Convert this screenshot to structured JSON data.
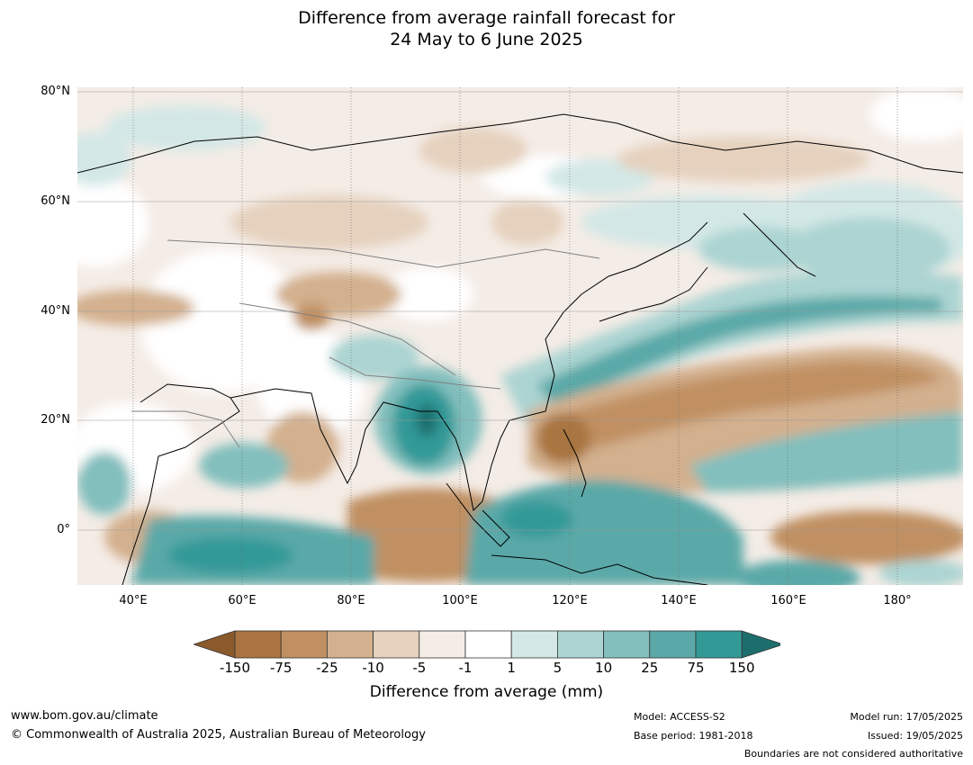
{
  "title_line1": "Difference from average rainfall forecast for",
  "title_line2": "24 May to 6 June 2025",
  "lat_labels": [
    "80°N",
    "60°N",
    "40°N",
    "20°N",
    "0°"
  ],
  "lon_labels": [
    "40°E",
    "60°E",
    "80°E",
    "100°E",
    "120°E",
    "140°E",
    "160°E",
    "180°"
  ],
  "colorbar": {
    "ticks": [
      "-150",
      "-75",
      "-25",
      "-10",
      "-5",
      "-1",
      "1",
      "5",
      "10",
      "25",
      "75",
      "150"
    ],
    "colors": [
      "#8b5a2b",
      "#a97440",
      "#c09062",
      "#d3b08e",
      "#e5d1be",
      "#f4ece6",
      "#ffffff",
      "#d3e8e6",
      "#acd4d2",
      "#82bfbd",
      "#5aa9a8",
      "#339997",
      "#1c6e6d"
    ],
    "label": "Difference from average (mm)"
  },
  "footer": {
    "url": "www.bom.gov.au/climate",
    "copyright": "© Commonwealth of Australia 2025, Australian Bureau of Meteorology",
    "model": "Model: ACCESS-S2",
    "base_period": "Base period: 1981-2018",
    "model_run": "Model run: 17/05/2025",
    "issued": "Issued: 19/05/2025",
    "boundaries": "Boundaries are not considered authoritative"
  }
}
